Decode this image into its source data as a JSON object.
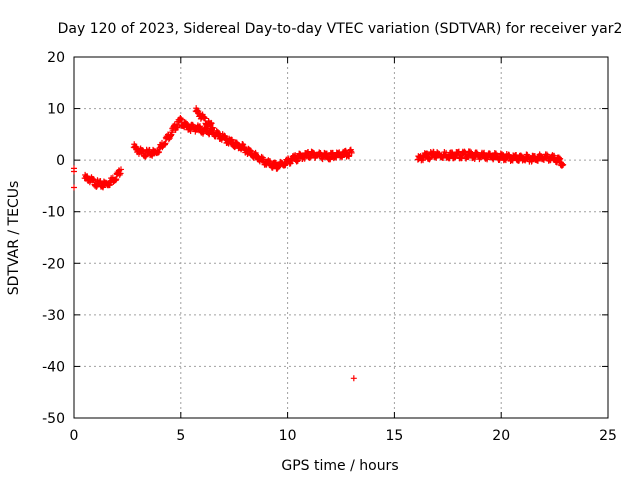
{
  "chart_data": {
    "type": "scatter",
    "title": "Day 120 of 2023, Sidereal Day-to-day VTEC variation (SDTVAR) for receiver yar2",
    "xlabel": "GPS time / hours",
    "ylabel": "SDTVAR / TECUs",
    "xlim": [
      0,
      25
    ],
    "ylim": [
      -50,
      20
    ],
    "xticks": [
      0,
      5,
      10,
      15,
      20,
      25
    ],
    "yticks": [
      20,
      10,
      0,
      -10,
      -20,
      -30,
      -40,
      -50
    ],
    "xtick_labels": [
      "0",
      "5",
      "10",
      "15",
      "20",
      "25"
    ],
    "ytick_labels": [
      "20",
      "10",
      "0",
      "-10",
      "-20",
      "-30",
      "-40",
      "-50"
    ],
    "grid": true,
    "marker": "+",
    "color": "#ff0000",
    "series": [
      {
        "name": "SDTVAR",
        "segments": [
          {
            "x": [
              0.0,
              0.0,
              0.0
            ],
            "y": [
              -1.6,
              -2.2,
              -5.3
            ]
          },
          {
            "x": [
              0.5,
              0.7,
              0.9,
              1.1,
              1.3,
              1.5,
              1.7,
              1.9,
              2.1,
              2.2
            ],
            "y": [
              -3.5,
              -3.6,
              -4.2,
              -4.6,
              -4.8,
              -4.6,
              -4.2,
              -3.5,
              -2.5,
              -1.8
            ]
          },
          {
            "x": [
              2.8,
              3.0,
              3.2,
              3.5,
              3.8,
              4.0,
              4.2,
              4.5,
              4.8,
              5.0,
              5.2,
              5.5,
              5.8,
              6.0,
              6.3,
              6.6,
              6.9,
              7.2,
              7.5,
              7.8,
              8.0,
              8.3,
              8.6,
              8.9,
              9.2,
              9.5,
              9.8,
              10.1,
              10.4,
              10.7,
              11.0,
              11.3,
              11.6,
              11.9,
              12.2,
              12.5,
              12.8,
              13.0
            ],
            "y": [
              2.5,
              1.9,
              1.4,
              1.3,
              1.5,
              2.2,
              3.4,
              5.0,
              6.8,
              7.6,
              6.6,
              6.3,
              6.1,
              5.8,
              5.6,
              5.2,
              4.5,
              3.8,
              3.1,
              2.6,
              2.2,
              1.4,
              0.5,
              -0.3,
              -0.9,
              -1.2,
              -0.7,
              -0.1,
              0.4,
              0.8,
              1.0,
              1.1,
              0.9,
              0.7,
              0.8,
              1.0,
              1.2,
              1.4
            ]
          },
          {
            "x": [
              5.7,
              5.9,
              6.1,
              6.3,
              6.5
            ],
            "y": [
              9.5,
              8.8,
              7.8,
              6.9,
              6.3
            ]
          },
          {
            "x": [
              13.1
            ],
            "y": [
              -42.3
            ]
          },
          {
            "x": [
              16.1,
              16.4,
              16.7,
              17.0,
              17.3,
              17.6,
              17.9,
              18.2,
              18.5,
              18.8,
              19.1,
              19.4,
              19.7,
              20.0,
              20.3,
              20.6,
              20.9,
              21.2,
              21.5,
              21.8,
              22.1,
              22.4,
              22.7,
              22.9
            ],
            "y": [
              0.1,
              0.7,
              0.9,
              1.0,
              1.0,
              1.0,
              1.0,
              1.0,
              1.0,
              0.9,
              0.8,
              0.8,
              0.7,
              0.6,
              0.5,
              0.4,
              0.4,
              0.4,
              0.4,
              0.5,
              0.5,
              0.3,
              -0.1,
              -0.9
            ]
          }
        ]
      }
    ]
  }
}
